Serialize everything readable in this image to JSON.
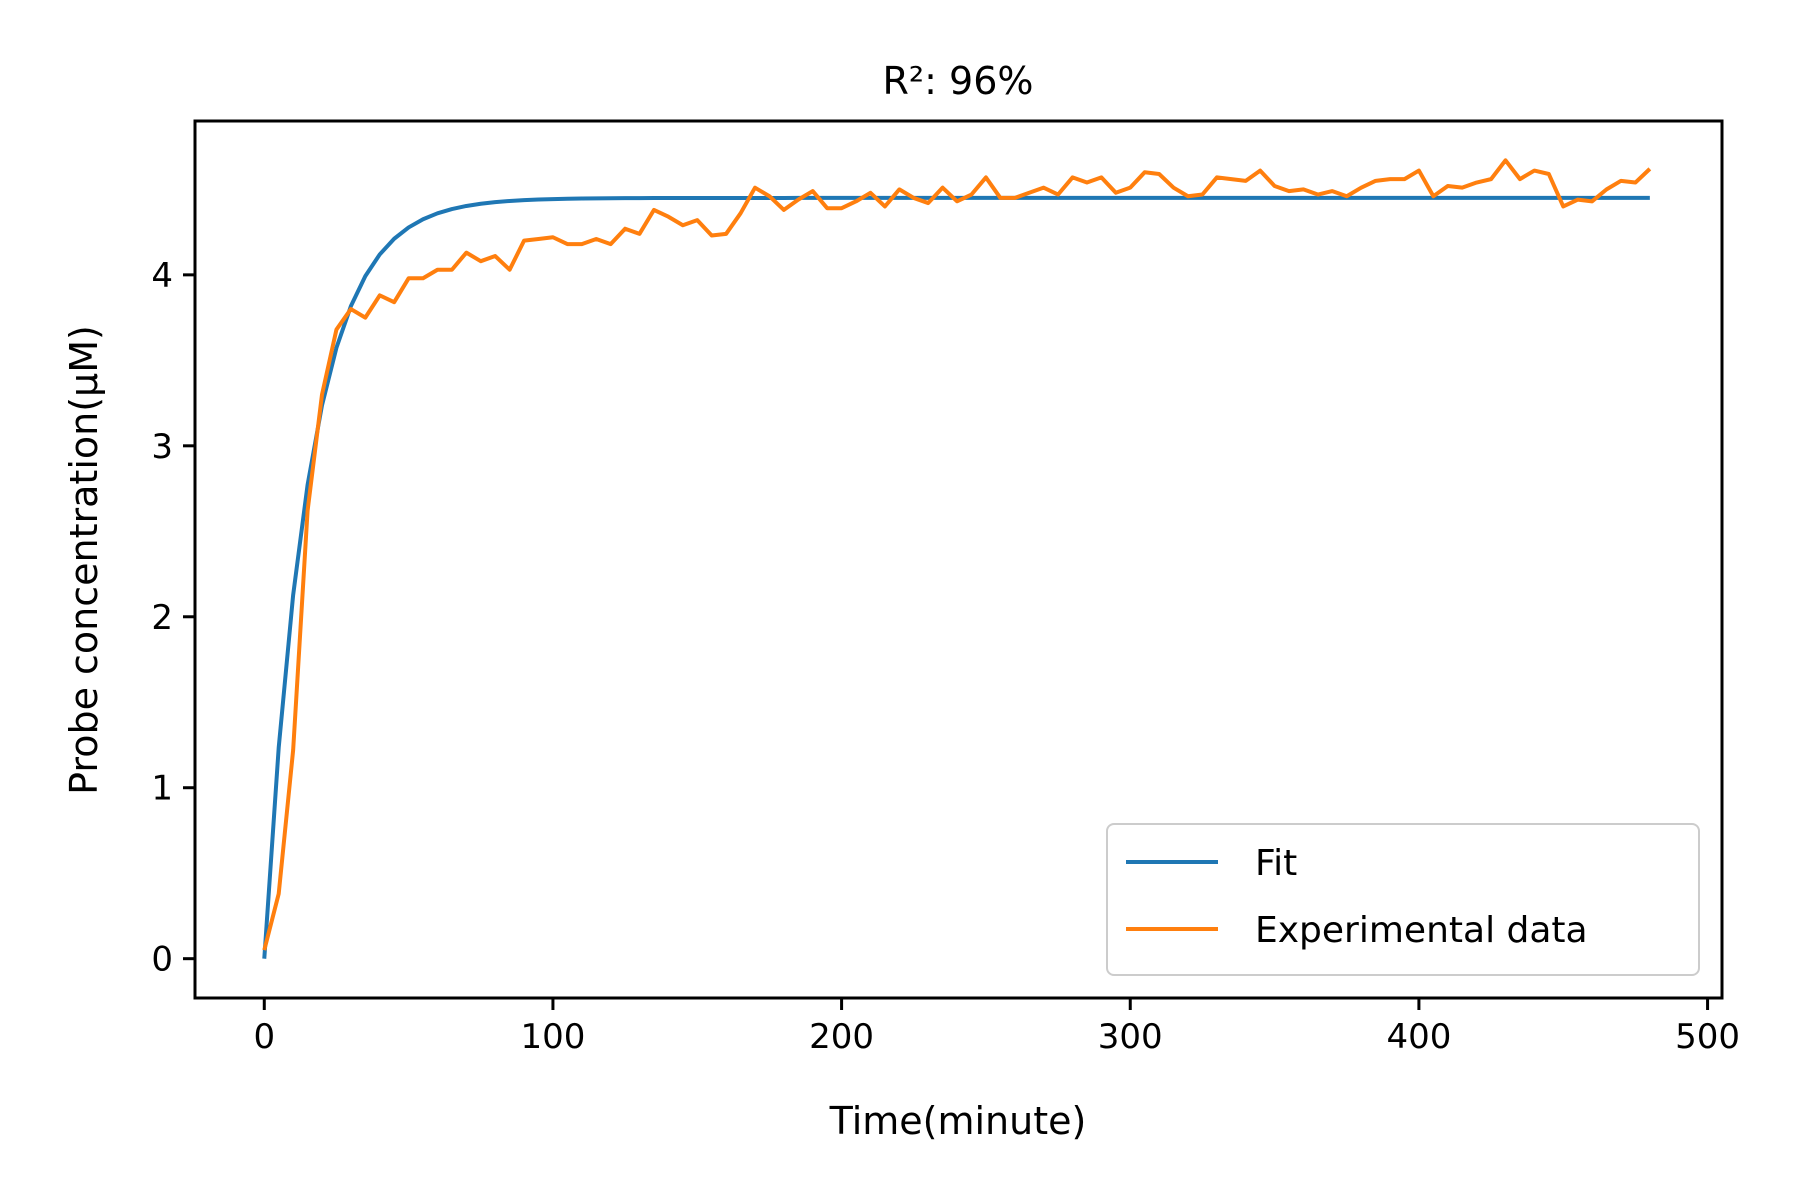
{
  "chart_data": {
    "type": "line",
    "title": "R²: 96%",
    "xlabel": "Time(minute)",
    "ylabel": "Probe concentration(μM)",
    "xlim": [
      -24,
      505
    ],
    "ylim": [
      -0.23,
      4.9
    ],
    "xticks": [
      0,
      100,
      200,
      300,
      400,
      500
    ],
    "yticks": [
      0,
      1,
      2,
      3,
      4
    ],
    "grid": false,
    "legend": "lower right",
    "series": [
      {
        "name": "Fit",
        "color": "#1f77b4",
        "model": {
          "plateau": 4.45,
          "rate": 0.065
        },
        "x_start": 0,
        "x_end": 480,
        "x_step": 5
      },
      {
        "name": "Experimental data",
        "color": "#ff7f0e",
        "x": [
          0,
          5,
          10,
          15,
          20,
          25,
          30,
          35,
          40,
          45,
          50,
          55,
          60,
          65,
          70,
          75,
          80,
          85,
          90,
          95,
          100,
          105,
          110,
          115,
          120,
          125,
          130,
          135,
          140,
          145,
          150,
          155,
          160,
          165,
          170,
          175,
          180,
          185,
          190,
          195,
          200,
          205,
          210,
          215,
          220,
          225,
          230,
          235,
          240,
          245,
          250,
          255,
          260,
          265,
          270,
          275,
          280,
          285,
          290,
          295,
          300,
          305,
          310,
          315,
          320,
          325,
          330,
          335,
          340,
          345,
          350,
          355,
          360,
          365,
          370,
          375,
          380,
          385,
          390,
          395,
          400,
          405,
          410,
          415,
          420,
          425,
          430,
          435,
          440,
          445,
          450,
          455,
          460,
          465,
          470,
          475,
          480
        ],
        "y": [
          0.05,
          0.38,
          1.22,
          2.62,
          3.3,
          3.68,
          3.8,
          3.75,
          3.88,
          3.84,
          3.98,
          3.98,
          4.03,
          4.03,
          4.13,
          4.08,
          4.11,
          4.03,
          4.2,
          4.21,
          4.22,
          4.18,
          4.18,
          4.21,
          4.18,
          4.27,
          4.24,
          4.38,
          4.34,
          4.29,
          4.32,
          4.23,
          4.24,
          4.36,
          4.51,
          4.46,
          4.38,
          4.44,
          4.49,
          4.39,
          4.39,
          4.43,
          4.48,
          4.4,
          4.5,
          4.45,
          4.42,
          4.51,
          4.43,
          4.47,
          4.57,
          4.45,
          4.45,
          4.48,
          4.51,
          4.47,
          4.57,
          4.54,
          4.57,
          4.48,
          4.51,
          4.6,
          4.59,
          4.51,
          4.46,
          4.47,
          4.57,
          4.56,
          4.55,
          4.61,
          4.52,
          4.49,
          4.5,
          4.47,
          4.49,
          4.46,
          4.51,
          4.55,
          4.56,
          4.56,
          4.61,
          4.46,
          4.52,
          4.51,
          4.54,
          4.56,
          4.67,
          4.56,
          4.61,
          4.59,
          4.4,
          4.44,
          4.43,
          4.5,
          4.55,
          4.54,
          4.62
        ]
      }
    ]
  }
}
